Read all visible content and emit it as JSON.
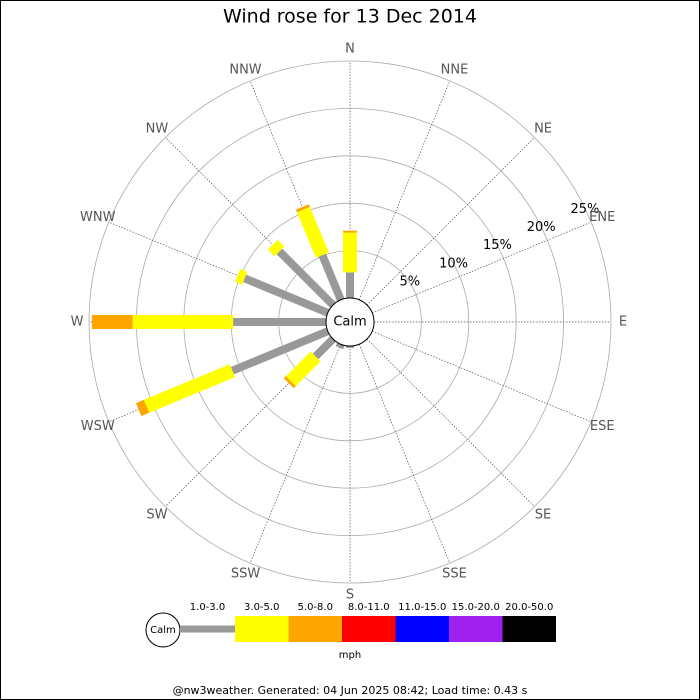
{
  "chart_data": {
    "type": "windrose",
    "title": "Wind rose for 13 Dec 2014",
    "center_label": "Calm",
    "directions": [
      "N",
      "NNE",
      "NE",
      "ENE",
      "E",
      "ESE",
      "SE",
      "SSE",
      "S",
      "SSW",
      "SW",
      "WSW",
      "W",
      "WNW",
      "NW",
      "NNW"
    ],
    "series": [
      {
        "name": "1.0-3.0",
        "color": "#999999",
        "values": [
          2.7,
          0,
          0,
          0,
          0,
          0,
          0,
          0,
          0.2,
          0.4,
          2.6,
          10.9,
          9.8,
          9.5,
          8.0,
          5.1
        ]
      },
      {
        "name": "3.0-5.0",
        "color": "#ffff00",
        "values": [
          4.2,
          0,
          0,
          0,
          0,
          0,
          0,
          0,
          0,
          0,
          3.7,
          9.8,
          10.6,
          0.8,
          1.0,
          5.2
        ]
      },
      {
        "name": "5.0-8.0",
        "color": "#ffa500",
        "values": [
          0.2,
          0,
          0,
          0,
          0,
          0,
          0,
          0,
          0,
          0,
          0.3,
          0.9,
          4.3,
          0,
          0,
          0.3
        ]
      },
      {
        "name": "8.0-11.0",
        "color": "#ff0000",
        "values": [
          0,
          0,
          0,
          0,
          0,
          0,
          0,
          0,
          0,
          0,
          0,
          0,
          0,
          0,
          0,
          0
        ]
      },
      {
        "name": "11.0-15.0",
        "color": "#0000ff",
        "values": [
          0,
          0,
          0,
          0,
          0,
          0,
          0,
          0,
          0,
          0,
          0,
          0,
          0,
          0,
          0,
          0
        ]
      },
      {
        "name": "15.0-20.0",
        "color": "#a020f0",
        "values": [
          0,
          0,
          0,
          0,
          0,
          0,
          0,
          0,
          0,
          0,
          0,
          0,
          0,
          0,
          0,
          0
        ]
      },
      {
        "name": "20.0-50.0",
        "color": "#000000",
        "values": [
          0,
          0,
          0,
          0,
          0,
          0,
          0,
          0,
          0,
          0,
          0,
          0,
          0,
          0,
          0,
          0
        ]
      }
    ],
    "rlim": [
      0,
      25
    ],
    "rticks": [
      {
        "value": 5,
        "label": "5%"
      },
      {
        "value": 10,
        "label": "10%"
      },
      {
        "value": 15,
        "label": "15%"
      },
      {
        "value": 20,
        "label": "20%"
      },
      {
        "value": 25,
        "label": "25%"
      }
    ],
    "legend_center_label": "Calm",
    "legend_unit": "mph",
    "footer": "@nw3weather. Generated: 04 Jun 2025 08:42; Load time: 0.43 s"
  }
}
